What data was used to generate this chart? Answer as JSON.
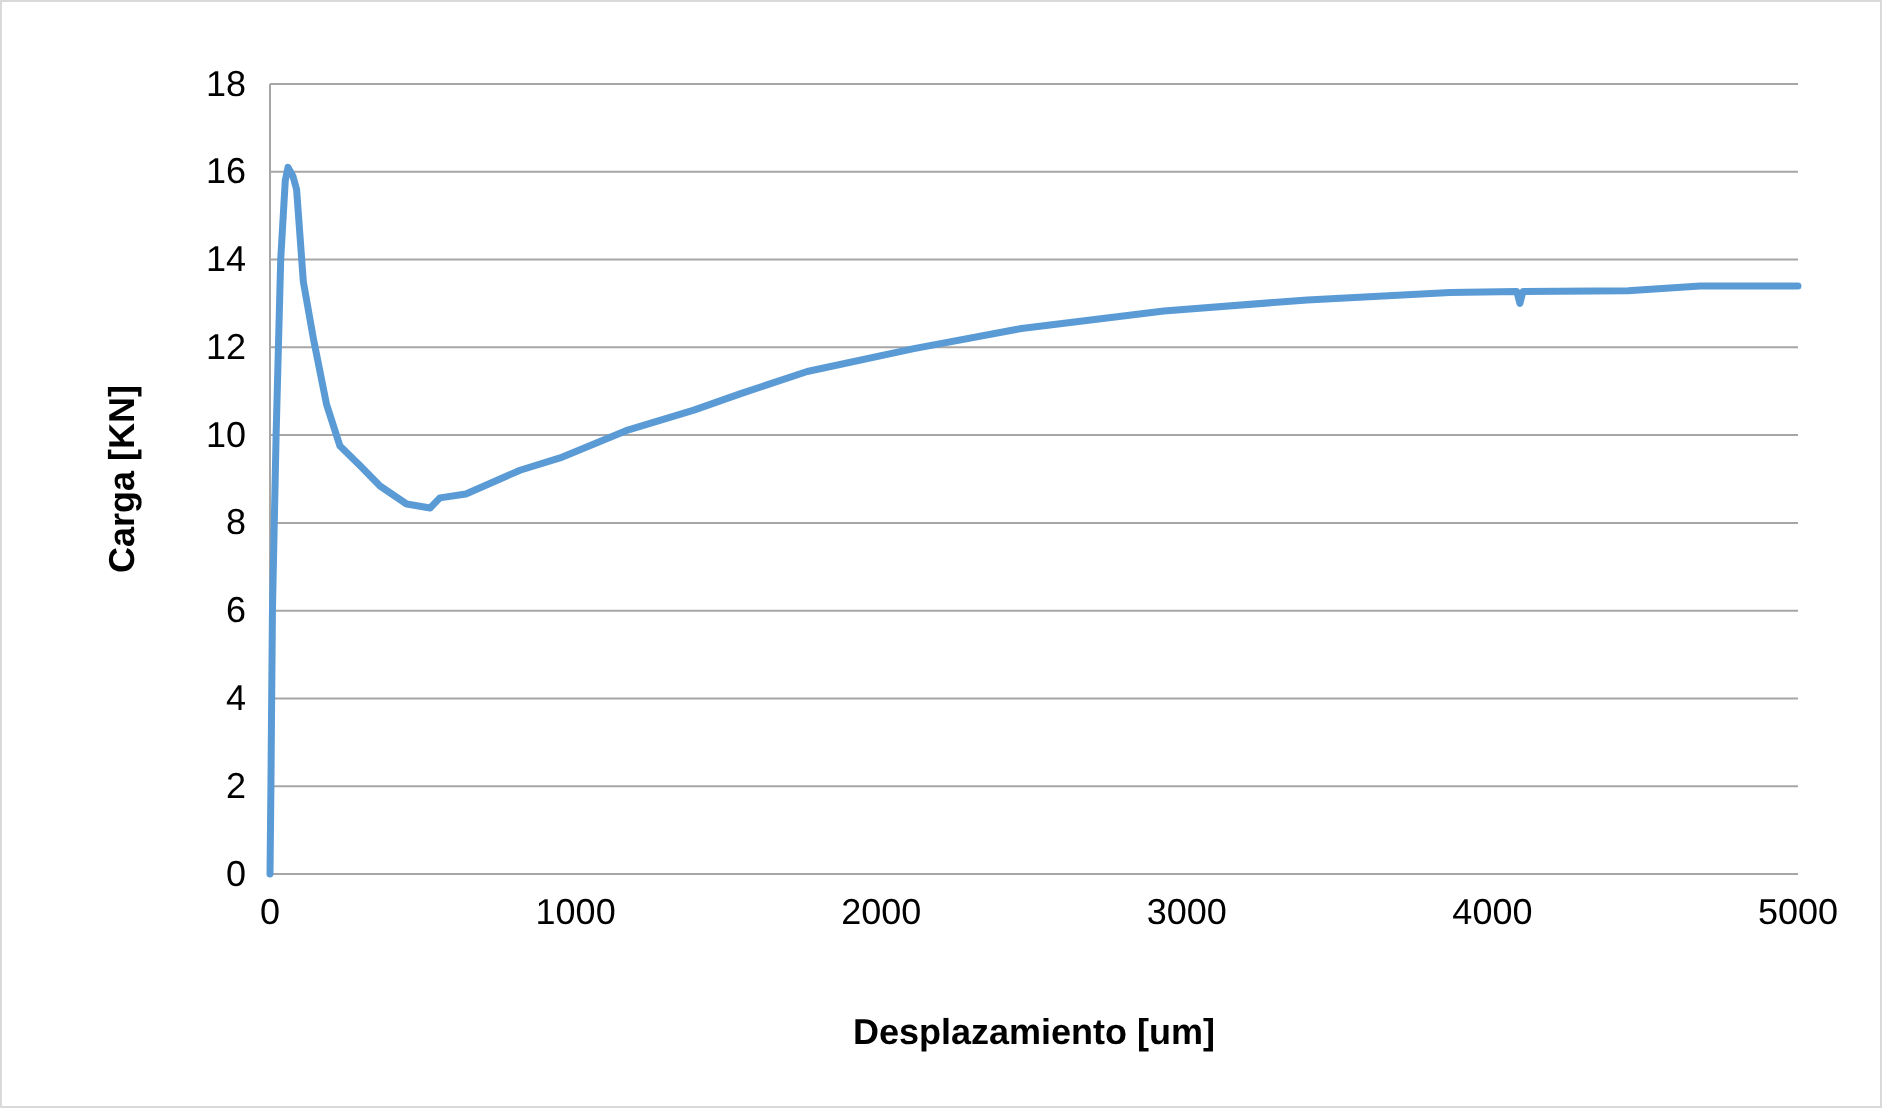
{
  "chart_data": {
    "type": "line",
    "xlabel": "Desplazamiento [um]",
    "ylabel": "Carga [KN]",
    "xlim": [
      0,
      5000
    ],
    "xticks": [
      0,
      1000,
      2000,
      3000,
      4000,
      5000
    ],
    "ylim": [
      0,
      18
    ],
    "yticks": [
      0,
      2,
      4,
      6,
      8,
      10,
      12,
      14,
      16,
      18
    ],
    "grid": "y",
    "marker": "none",
    "line_style": "solid",
    "series": [
      {
        "color": "#5b9bd5",
        "x": [
          0,
          3,
          8,
          20,
          35,
          50,
          59,
          75,
          87,
          109,
          142,
          185,
          229,
          295,
          360,
          447,
          524,
          556,
          641,
          818,
          949,
          1165,
          1387,
          1538,
          1758,
          2107,
          2459,
          2925,
          3394,
          3861,
          4080,
          4090,
          4100,
          4444,
          4680,
          5000
        ],
        "values": [
          0,
          2,
          6,
          10,
          14,
          15.8,
          16.1,
          15.9,
          15.6,
          13.5,
          12.2,
          10.7,
          9.75,
          9.3,
          8.84,
          8.43,
          8.34,
          8.57,
          8.66,
          9.2,
          9.48,
          10.1,
          10.57,
          10.94,
          11.45,
          11.97,
          12.43,
          12.83,
          13.08,
          13.25,
          13.27,
          13.0,
          13.27,
          13.29,
          13.4,
          13.4
        ]
      }
    ]
  }
}
